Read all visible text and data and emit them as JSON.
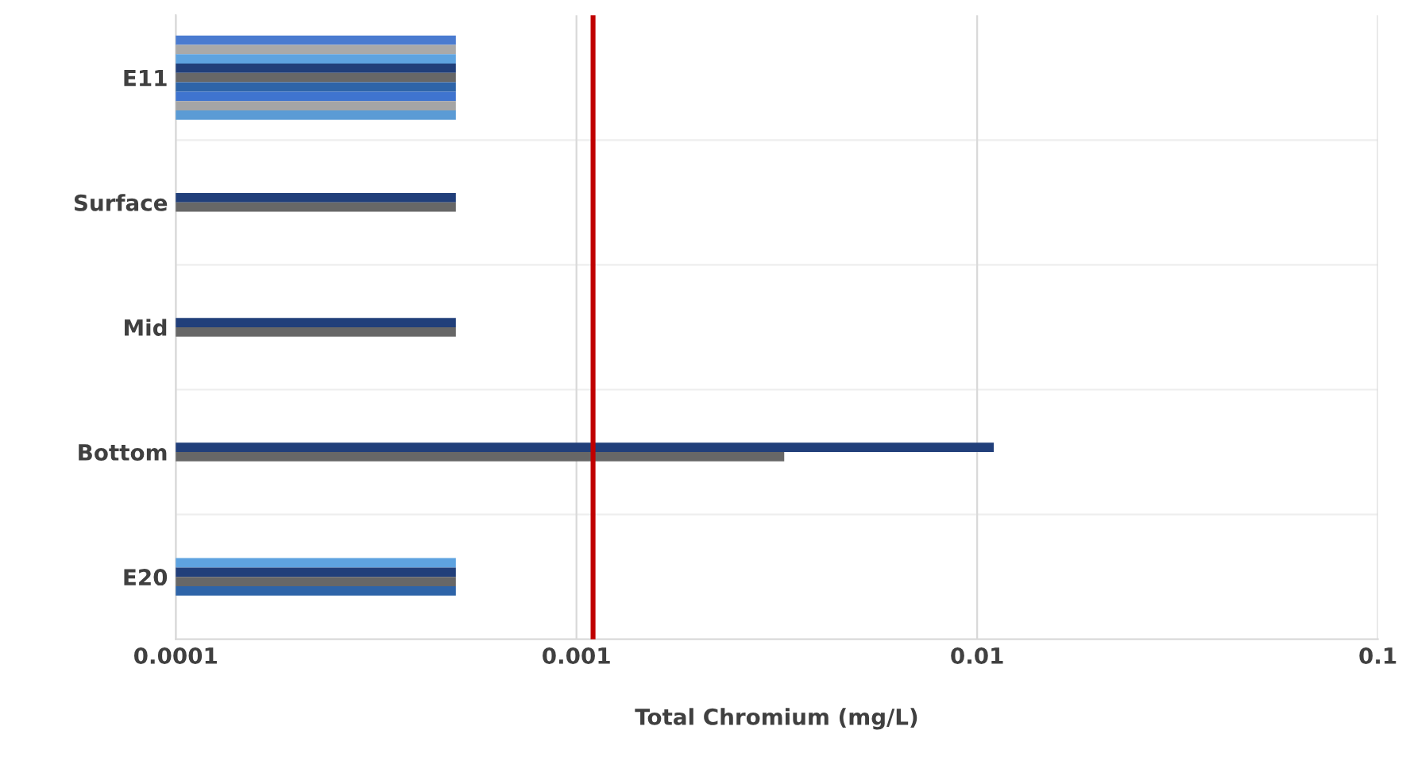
{
  "chart_data": {
    "type": "bar",
    "orientation": "horizontal",
    "xlabel": "Total Chromium (mg/L)",
    "categories": [
      "E11",
      "Surface",
      "Mid",
      "Bottom",
      "E20"
    ],
    "series": [
      {
        "color": "#4a7bd0",
        "values": [
          0.0005,
          null,
          null,
          null,
          null
        ]
      },
      {
        "color": "#a9a9a9",
        "values": [
          0.0005,
          null,
          null,
          null,
          null
        ]
      },
      {
        "color": "#5ea3e0",
        "values": [
          0.0005,
          null,
          null,
          null,
          0.0005
        ]
      },
      {
        "color": "#213f7a",
        "values": [
          0.0005,
          0.0005,
          0.0005,
          0.011,
          0.0005
        ]
      },
      {
        "color": "#676767",
        "values": [
          0.0005,
          0.0005,
          0.0005,
          0.0033,
          0.0005
        ]
      },
      {
        "color": "#2e64a8",
        "values": [
          0.0005,
          null,
          null,
          null,
          0.0005
        ]
      },
      {
        "color": "#3f74cf",
        "values": [
          0.0005,
          null,
          null,
          null,
          null
        ]
      },
      {
        "color": "#a5a5a5",
        "values": [
          0.0005,
          null,
          null,
          null,
          null
        ]
      },
      {
        "color": "#5b9bd5",
        "values": [
          0.0005,
          null,
          null,
          null,
          null
        ]
      }
    ],
    "log": "x",
    "xlim": [
      0.0001,
      0.1
    ],
    "xticks": [
      0.0001,
      0.001,
      0.01,
      0.1
    ],
    "grid": true,
    "legend": false,
    "ref_lines": [
      {
        "axis": "x",
        "value": 0.0011,
        "color": "#c00000"
      }
    ]
  }
}
